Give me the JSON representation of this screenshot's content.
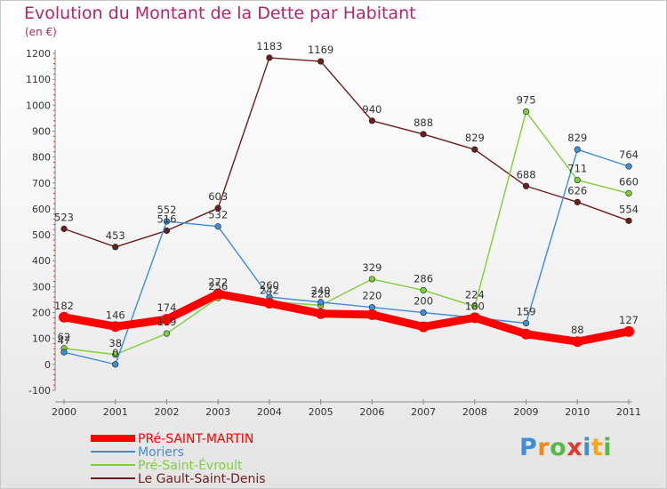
{
  "title": "Evolution du Montant de la Dette par Habitant",
  "subtitle": "(en €)",
  "logo": "Proxiti",
  "chart_data": {
    "type": "line",
    "title": "Evolution du Montant de la Dette par Habitant",
    "ylabel": "(en €)",
    "x": [
      "2000",
      "2001",
      "2002",
      "2003",
      "2004",
      "2005",
      "2006",
      "2007",
      "2008",
      "2009",
      "2010",
      "2011"
    ],
    "ylim": [
      -100,
      1200
    ],
    "yticks": [
      -100,
      0,
      100,
      200,
      300,
      400,
      500,
      600,
      700,
      800,
      900,
      1000,
      1100,
      1200
    ],
    "grid": false,
    "legend": "bottom-left",
    "series": [
      {
        "name": "PRé-SAINT-MARTIN",
        "color": "#ff0000",
        "values": [
          182,
          146,
          174,
          272,
          236,
          196,
          192,
          145,
          180,
          117,
          88,
          127
        ],
        "labels": [
          "182",
          "146",
          "174",
          "272",
          "",
          "",
          "",
          "",
          "",
          "",
          "88",
          "127"
        ]
      },
      {
        "name": "Moriers",
        "color": "#3d8ed6",
        "values": [
          47,
          0,
          552,
          532,
          260,
          240,
          220,
          200,
          180,
          159,
          829,
          764
        ],
        "labels": [
          "47",
          "0",
          "552",
          "532",
          "260",
          "240",
          "220",
          "200",
          "180",
          "159",
          "829",
          "764"
        ]
      },
      {
        "name": "Pré-Saint-Évroult",
        "color": "#7fcf3a",
        "values": [
          62,
          38,
          119,
          256,
          242,
          228,
          329,
          286,
          224,
          975,
          711,
          660
        ],
        "labels": [
          "62",
          "38",
          "119",
          "256",
          "242",
          "228",
          "329",
          "286",
          "224",
          "975",
          "711",
          "660"
        ]
      },
      {
        "name": "Le Gault-Saint-Denis",
        "color": "#6e1d1d",
        "values": [
          523,
          453,
          516,
          603,
          1183,
          1169,
          940,
          888,
          829,
          688,
          626,
          554
        ],
        "labels": [
          "523",
          "453",
          "516",
          "603",
          "1183",
          "1169",
          "940",
          "888",
          "829",
          "688",
          "626",
          "554"
        ]
      }
    ]
  }
}
